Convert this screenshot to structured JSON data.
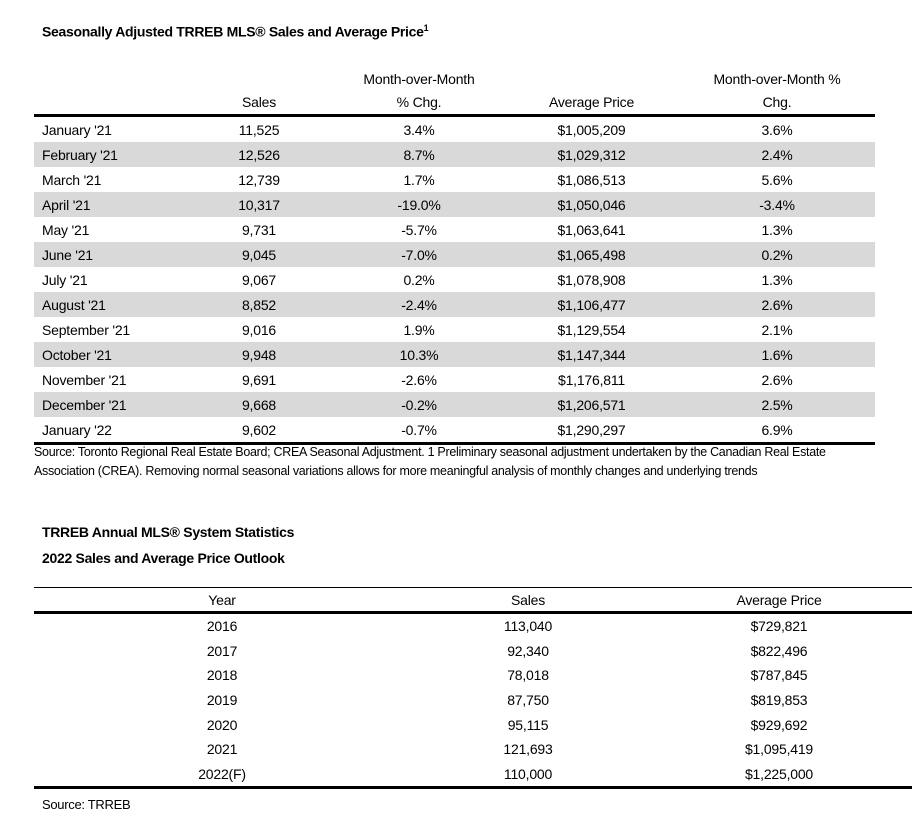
{
  "monthly": {
    "title": "Seasonally Adjusted TRREB MLS® Sales and Average Price",
    "title_footnote": "1",
    "headers": {
      "sales": "Sales",
      "mom_line1": "Month-over-Month",
      "mom_line2": "% Chg.",
      "avg_price": "Average Price",
      "mom_pct_line1": "Month-over-Month %",
      "mom_pct_line2": "Chg."
    },
    "rows": [
      {
        "month": "January '21",
        "sales": "11,525",
        "mom": "3.4%",
        "price": "$1,005,209",
        "price_mom": "3.6%"
      },
      {
        "month": "February '21",
        "sales": "12,526",
        "mom": "8.7%",
        "price": "$1,029,312",
        "price_mom": "2.4%"
      },
      {
        "month": "March '21",
        "sales": "12,739",
        "mom": "1.7%",
        "price": "$1,086,513",
        "price_mom": "5.6%"
      },
      {
        "month": "April '21",
        "sales": "10,317",
        "mom": "-19.0%",
        "price": "$1,050,046",
        "price_mom": "-3.4%"
      },
      {
        "month": "May '21",
        "sales": "9,731",
        "mom": "-5.7%",
        "price": "$1,063,641",
        "price_mom": "1.3%"
      },
      {
        "month": "June '21",
        "sales": "9,045",
        "mom": "-7.0%",
        "price": "$1,065,498",
        "price_mom": "0.2%"
      },
      {
        "month": "July '21",
        "sales": "9,067",
        "mom": "0.2%",
        "price": "$1,078,908",
        "price_mom": "1.3%"
      },
      {
        "month": "August '21",
        "sales": "8,852",
        "mom": "-2.4%",
        "price": "$1,106,477",
        "price_mom": "2.6%"
      },
      {
        "month": "September '21",
        "sales": "9,016",
        "mom": "1.9%",
        "price": "$1,129,554",
        "price_mom": "2.1%"
      },
      {
        "month": "October '21",
        "sales": "9,948",
        "mom": "10.3%",
        "price": "$1,147,344",
        "price_mom": "1.6%"
      },
      {
        "month": "November '21",
        "sales": "9,691",
        "mom": "-2.6%",
        "price": "$1,176,811",
        "price_mom": "2.6%"
      },
      {
        "month": "December '21",
        "sales": "9,668",
        "mom": "-0.2%",
        "price": "$1,206,571",
        "price_mom": "2.5%"
      },
      {
        "month": "January '22",
        "sales": "9,602",
        "mom": "-0.7%",
        "price": "$1,290,297",
        "price_mom": "6.9%"
      }
    ],
    "source": "Source: Toronto Regional Real Estate Board; CREA Seasonal Adjustment. 1 Preliminary seasonal adjustment undertaken by the Canadian Real Estate Association (CREA).  Removing normal seasonal variations allows for more meaningful analysis of monthly changes and underlying trends"
  },
  "annual": {
    "title1": "TRREB Annual MLS® System Statistics",
    "title2": "2022 Sales and Average Price Outlook",
    "headers": {
      "year": "Year",
      "sales": "Sales",
      "avg_price": "Average Price"
    },
    "rows": [
      {
        "year": "2016",
        "sales": "113,040",
        "price": "$729,821"
      },
      {
        "year": "2017",
        "sales": "92,340",
        "price": "$822,496"
      },
      {
        "year": "2018",
        "sales": "78,018",
        "price": "$787,845"
      },
      {
        "year": "2019",
        "sales": "87,750",
        "price": "$819,853"
      },
      {
        "year": "2020",
        "sales": "95,115",
        "price": "$929,692"
      },
      {
        "year": "2021",
        "sales": "121,693",
        "price": "$1,095,419"
      },
      {
        "year": "2022(F)",
        "sales": "110,000",
        "price": "$1,225,000"
      }
    ],
    "source": "Source: TRREB"
  }
}
